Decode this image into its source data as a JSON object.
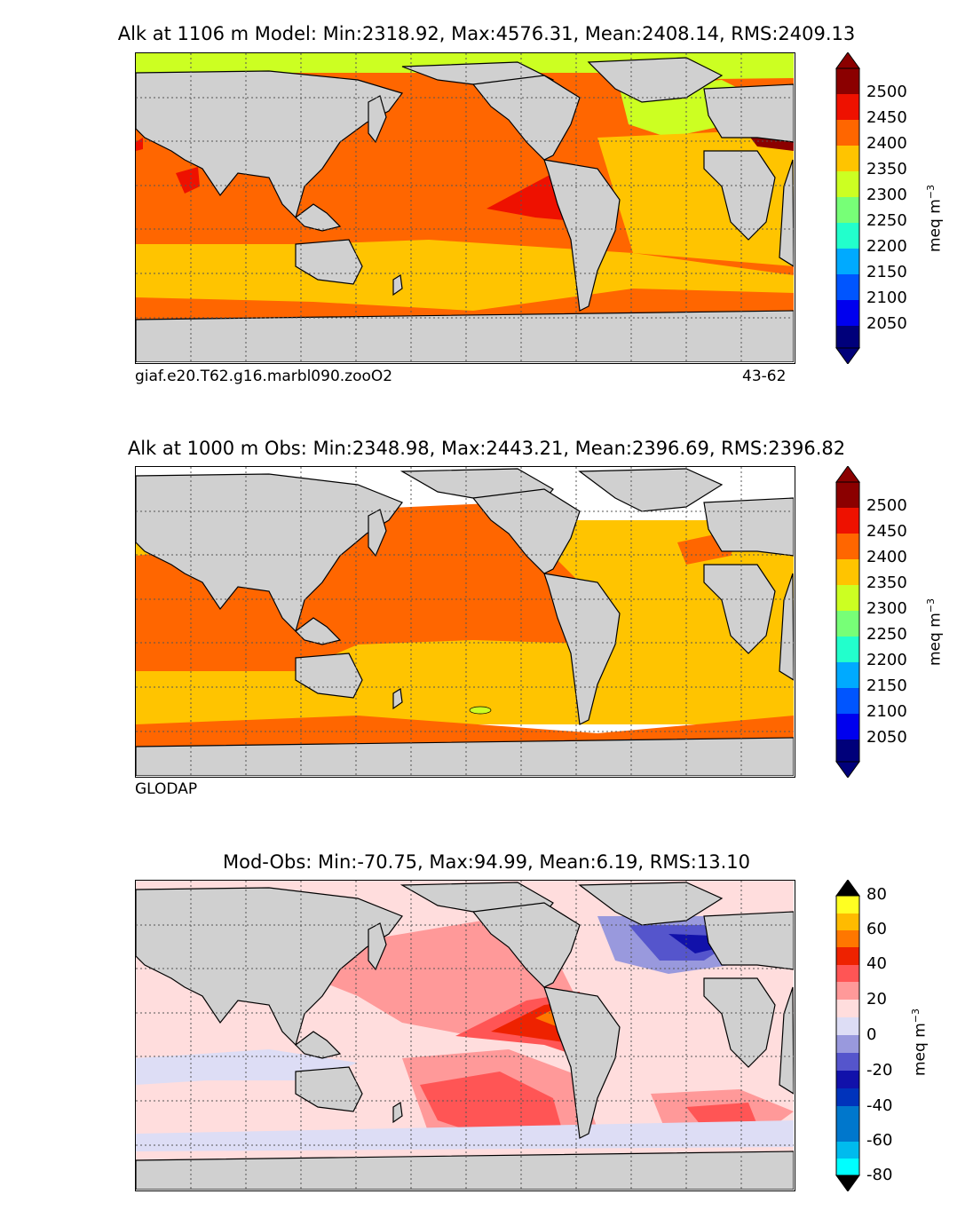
{
  "panels": [
    {
      "title": "Alk at 1106 m Model: Min:2318.92, Max:4576.31, Mean:2408.14, RMS:2409.13",
      "left_caption": "giaf.e20.T62.g16.marbl090.zooO2",
      "right_caption": "43-62",
      "colorbar": {
        "ticks": [
          "2500",
          "2450",
          "2400",
          "2350",
          "2300",
          "2250",
          "2200",
          "2150",
          "2100",
          "2050"
        ],
        "unit": "meq m",
        "unit_exp": "−3"
      }
    },
    {
      "title": "Alk at 1000 m Obs: Min:2348.98, Max:2443.21, Mean:2396.69, RMS:2396.82",
      "left_caption": "GLODAP",
      "right_caption": "",
      "colorbar": {
        "ticks": [
          "2500",
          "2450",
          "2400",
          "2350",
          "2300",
          "2250",
          "2200",
          "2150",
          "2100",
          "2050"
        ],
        "unit": "meq m",
        "unit_exp": "−3"
      }
    },
    {
      "title": "Mod-Obs: Min:-70.75, Max:94.99, Mean:6.19, RMS:13.10",
      "left_caption": "",
      "right_caption": "",
      "colorbar": {
        "ticks": [
          "80",
          "60",
          "40",
          "20",
          "0",
          "-20",
          "-40",
          "-60",
          "-80"
        ],
        "unit": "meq m",
        "unit_exp": "−3"
      }
    }
  ],
  "colors": {
    "land": "#d0d0d0",
    "absolute_scale": [
      "#8b0000",
      "#ee1100",
      "#ff6600",
      "#ffc400",
      "#ccff22",
      "#77ff77",
      "#22ffcc",
      "#00aaff",
      "#0055ff",
      "#0000ee",
      "#00007a"
    ],
    "anomaly_scale": [
      "#ffff22",
      "#ffbb00",
      "#ff7700",
      "#ee2200",
      "#ff5555",
      "#ff9999",
      "#ffdddd",
      "#ddddf5",
      "#9999dd",
      "#5555cc",
      "#1111aa",
      "#0033bb",
      "#0077cc",
      "#00bbee",
      "#00ffff"
    ]
  }
}
